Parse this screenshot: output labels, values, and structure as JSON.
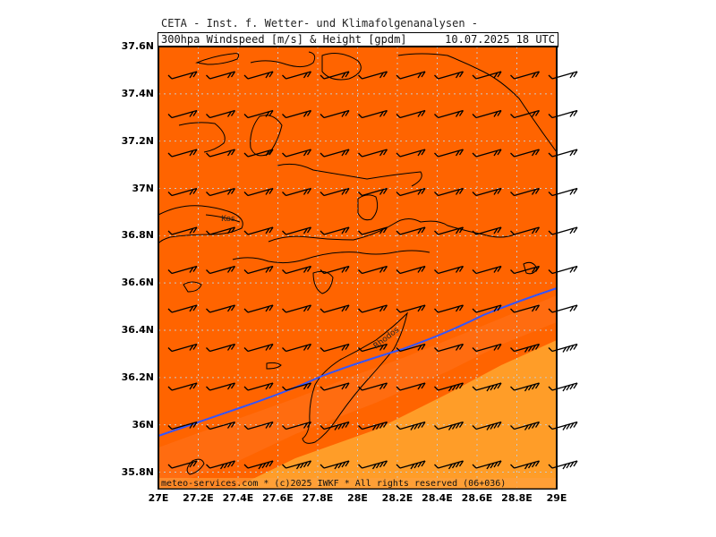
{
  "header": {
    "title": "CETA - Inst. f. Wetter- und Klimafolgenanalysen -",
    "parameter": "300hpa Windspeed [m/s] & Height [gpdm]",
    "valid_time": "10.07.2025 18 UTC"
  },
  "footer": {
    "credit": "meteo-services.com * (c)2025 IWKF * All rights reserved (06+036)"
  },
  "map": {
    "lat_labels": [
      "37.6N",
      "37.4N",
      "37.2N",
      "37N",
      "36.8N",
      "36.6N",
      "36.4N",
      "36.2N",
      "36N",
      "35.8N"
    ],
    "lon_labels": [
      "27E",
      "27.2E",
      "27.4E",
      "27.6E",
      "27.8E",
      "28E",
      "28.2E",
      "28.4E",
      "28.6E",
      "28.8E",
      "29E"
    ],
    "place_labels": [
      "Kos",
      "Rhodos"
    ],
    "colors": {
      "strong_wind": "#ff6400",
      "medium_wind": "#ff9d28",
      "height_contour": "#3355ff",
      "coastline": "#000000",
      "grid": "#bbbbbb"
    }
  }
}
